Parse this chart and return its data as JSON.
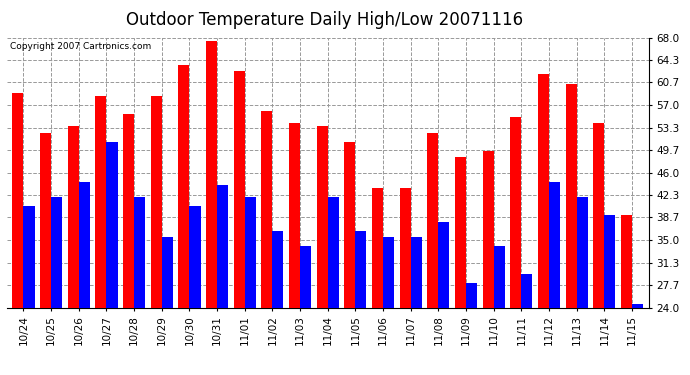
{
  "title": "Outdoor Temperature Daily High/Low 20071116",
  "copyright": "Copyright 2007 Cartronics.com",
  "categories": [
    "10/24",
    "10/25",
    "10/26",
    "10/27",
    "10/28",
    "10/29",
    "10/30",
    "10/31",
    "11/01",
    "11/02",
    "11/03",
    "11/04",
    "11/05",
    "11/06",
    "11/07",
    "11/08",
    "11/09",
    "11/10",
    "11/11",
    "11/12",
    "11/13",
    "11/14",
    "11/15"
  ],
  "highs": [
    59.0,
    52.5,
    53.5,
    58.5,
    55.5,
    58.5,
    63.5,
    67.5,
    62.5,
    56.0,
    54.0,
    53.5,
    51.0,
    43.5,
    43.5,
    52.5,
    48.5,
    49.5,
    55.0,
    62.0,
    60.5,
    54.0,
    39.0
  ],
  "lows": [
    40.5,
    42.0,
    44.5,
    51.0,
    42.0,
    35.5,
    40.5,
    44.0,
    42.0,
    36.5,
    34.0,
    42.0,
    36.5,
    35.5,
    35.5,
    38.0,
    28.0,
    34.0,
    29.5,
    44.5,
    42.0,
    39.0,
    24.5
  ],
  "high_color": "#ff0000",
  "low_color": "#0000ff",
  "bg_color": "#ffffff",
  "plot_bg_color": "#ffffff",
  "grid_color": "#999999",
  "bar_width": 0.4,
  "ymin": 24.0,
  "ymax": 68.0,
  "yticks": [
    24.0,
    27.7,
    31.3,
    35.0,
    38.7,
    42.3,
    46.0,
    49.7,
    53.3,
    57.0,
    60.7,
    64.3,
    68.0
  ],
  "title_fontsize": 12,
  "tick_fontsize": 7.5,
  "copyright_fontsize": 6.5
}
